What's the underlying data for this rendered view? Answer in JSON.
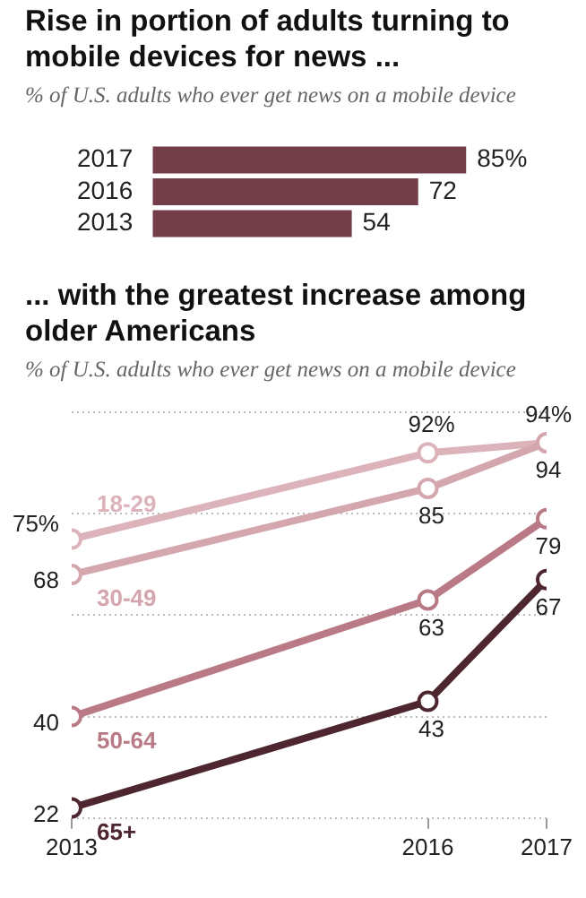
{
  "chart_data": [
    {
      "type": "bar",
      "orientation": "horizontal",
      "title": "Rise in portion of adults turning to mobile devices for news ...",
      "subtitle": "% of U.S. adults who ever get news on a mobile device",
      "categories": [
        "2017",
        "2016",
        "2013"
      ],
      "values": [
        85,
        72,
        54
      ],
      "value_labels": [
        "85%",
        "72",
        "54"
      ],
      "color": "#733d49",
      "tick_labels": "y",
      "grid": false,
      "legend": false
    },
    {
      "type": "line",
      "title": "... with the greatest increase among older Americans",
      "subtitle": "% of U.S. adults who ever get news on a mobile device",
      "x": [
        2013,
        2016,
        2017
      ],
      "xlim": [
        2013,
        2017
      ],
      "xticks": [
        2013,
        2016,
        2017
      ],
      "yticks": [
        {
          "value": 20,
          "label": null
        },
        {
          "value": 40,
          "label": null
        },
        {
          "value": 60,
          "label": null
        },
        {
          "value": 80,
          "label": null
        },
        {
          "value": 100,
          "label": null
        }
      ],
      "grid": "y",
      "tick_labels": "x",
      "legend": false,
      "marker": "circle",
      "line_style": "solid",
      "series": [
        {
          "name": "18-29",
          "color": "#dcb3ba",
          "values": [
            75,
            92,
            94
          ],
          "value_labels": [
            "75%",
            "92%",
            "94%"
          ]
        },
        {
          "name": "30-49",
          "color": "#d4a6ae",
          "values": [
            68,
            85,
            94
          ],
          "value_labels": [
            "68",
            "85",
            "94"
          ]
        },
        {
          "name": "50-64",
          "color": "#b97a86",
          "values": [
            40,
            63,
            79
          ],
          "value_labels": [
            "40",
            "63",
            "79"
          ]
        },
        {
          "name": "65+",
          "color": "#4e2630",
          "values": [
            22,
            43,
            67
          ],
          "value_labels": [
            "22",
            "43",
            "67"
          ]
        }
      ]
    }
  ]
}
